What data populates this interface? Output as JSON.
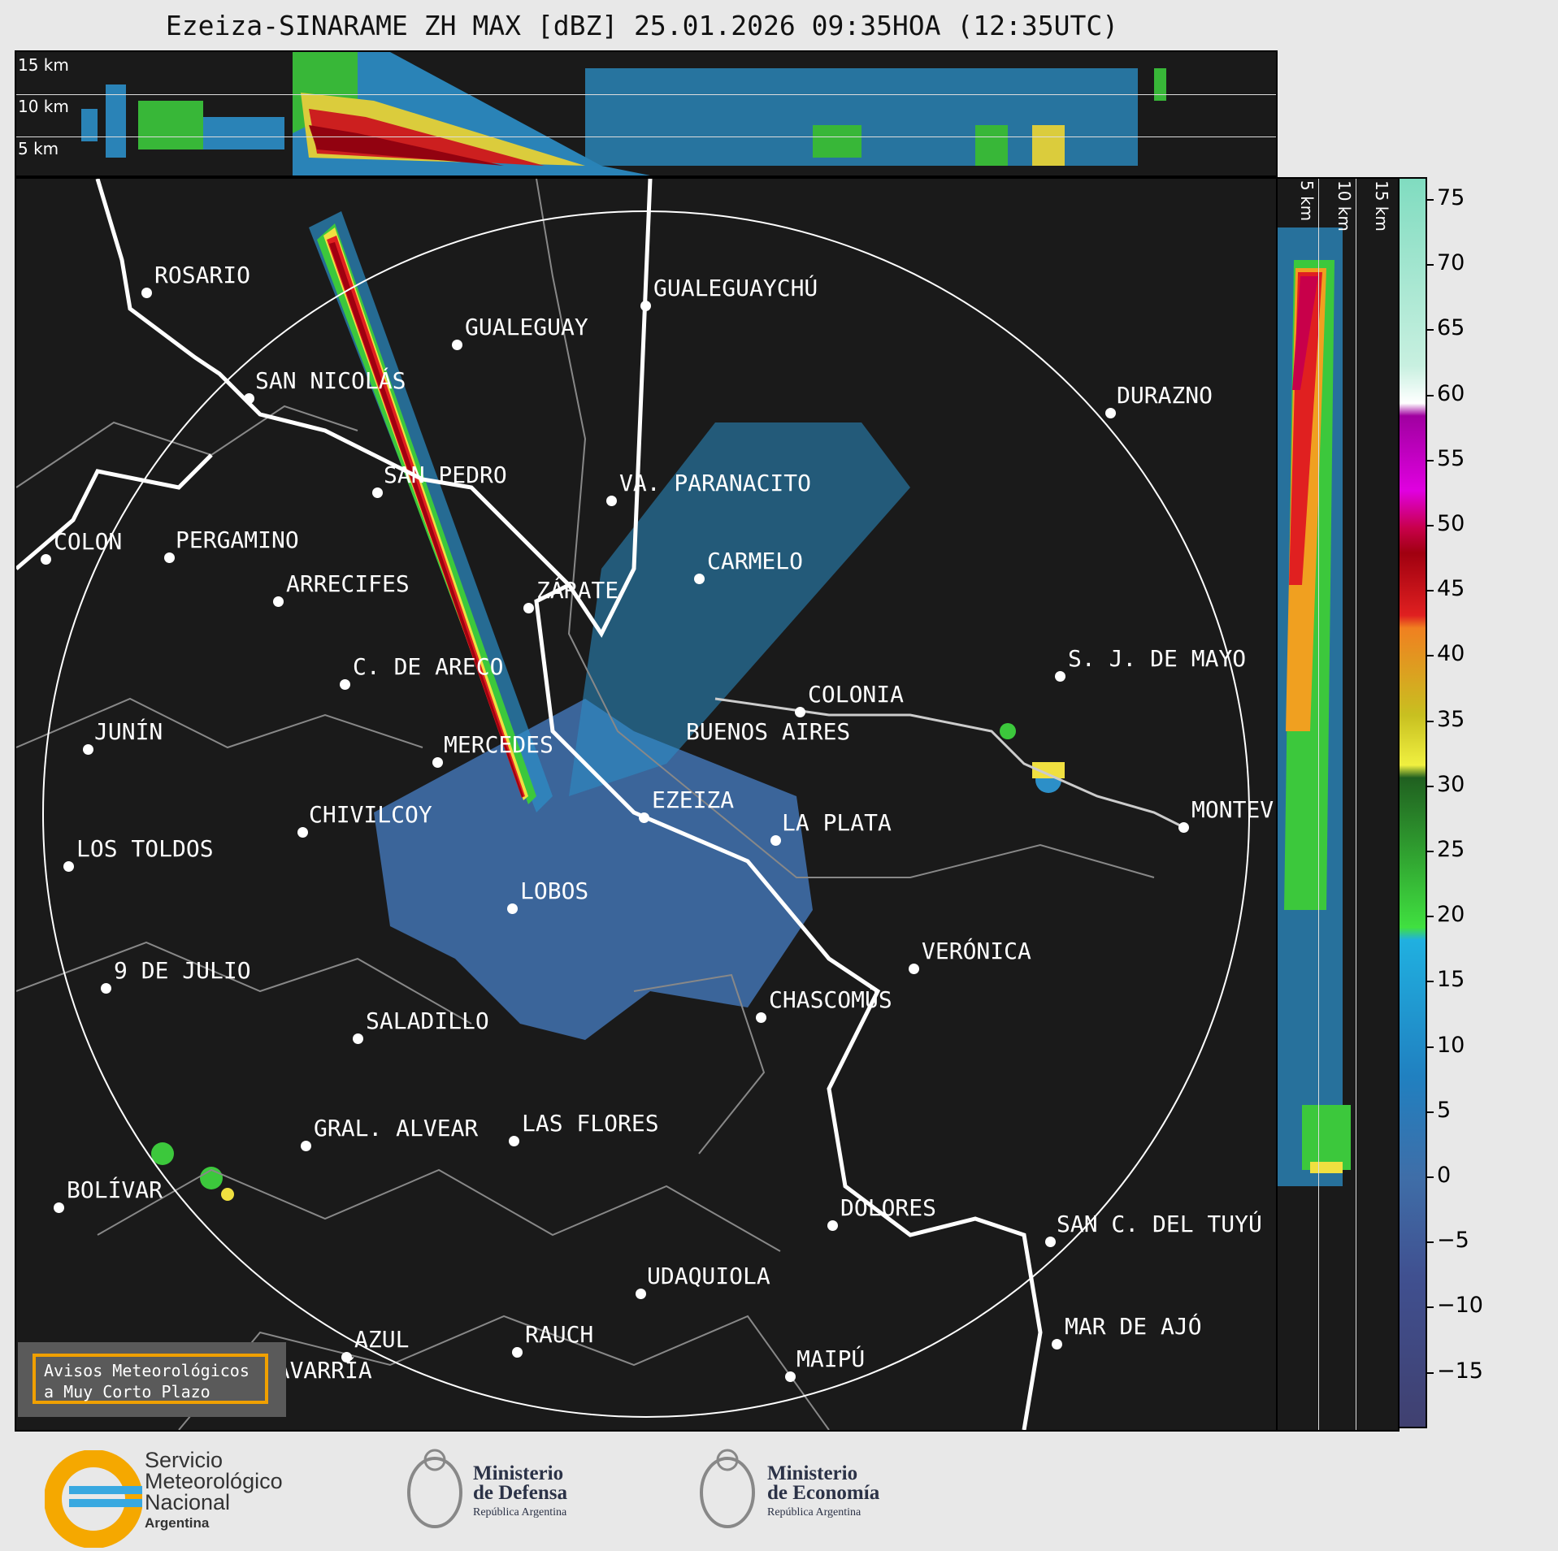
{
  "title": "Ezeiza-SINARAME ZH MAX [dBZ] 25.01.2026 09:35HOA (12:35UTC)",
  "top_panel": {
    "labels": [
      "15 km",
      "10 km",
      "5 km"
    ]
  },
  "side_panel": {
    "labels": [
      "5 km",
      "10 km",
      "15 km"
    ]
  },
  "colorbar": {
    "ticks": [
      "75",
      "70",
      "65",
      "60",
      "55",
      "50",
      "45",
      "40",
      "35",
      "30",
      "25",
      "20",
      "15",
      "10",
      "5",
      "0",
      "−5",
      "−10",
      "−15"
    ]
  },
  "cities": [
    {
      "name": "ROSARIO"
    },
    {
      "name": "GUALEGUAYCHÚ"
    },
    {
      "name": "GUALEGUAY"
    },
    {
      "name": "SAN NICOLÁS"
    },
    {
      "name": "DURAZNO"
    },
    {
      "name": "SAN PEDRO"
    },
    {
      "name": "VA. PARANACITO"
    },
    {
      "name": "COLON"
    },
    {
      "name": "PERGAMINO"
    },
    {
      "name": "CARMELO"
    },
    {
      "name": "ARRECIFES"
    },
    {
      "name": "ZÁRATE"
    },
    {
      "name": "S. J. DE MAYO"
    },
    {
      "name": "C. DE ARECO"
    },
    {
      "name": "COLONIA"
    },
    {
      "name": "JUNÍN"
    },
    {
      "name": "BUENOS AIRES"
    },
    {
      "name": "MERCEDES"
    },
    {
      "name": "EZEIZA"
    },
    {
      "name": "MONTEV"
    },
    {
      "name": "CHIVILCOY"
    },
    {
      "name": "LA PLATA"
    },
    {
      "name": "LOS TOLDOS"
    },
    {
      "name": "LOBOS"
    },
    {
      "name": "VERÓNICA"
    },
    {
      "name": "9 DE JULIO"
    },
    {
      "name": "CHASCOMÚS"
    },
    {
      "name": "SALADILLO"
    },
    {
      "name": "GRAL. ALVEAR"
    },
    {
      "name": "LAS FLORES"
    },
    {
      "name": "BOLÍVAR"
    },
    {
      "name": "DOLORES"
    },
    {
      "name": "SAN C. DEL TUYÚ"
    },
    {
      "name": "UDAQUIOLA"
    },
    {
      "name": "AZUL"
    },
    {
      "name": "RAUCH"
    },
    {
      "name": "MAR DE AJÓ"
    },
    {
      "name": "MAIPÚ"
    },
    {
      "name": "OLAVARRÍA"
    }
  ],
  "badge": {
    "line1": "Avisos Meteorológicos",
    "line2": "a Muy Corto Plazo"
  },
  "logos": {
    "smn": {
      "line1": "Servicio",
      "line2": "Meteorológico",
      "line3": "Nacional",
      "line4": "Argentina"
    },
    "defensa": {
      "line1": "Ministerio",
      "line2": "de Defensa",
      "line3": "República Argentina"
    },
    "economia": {
      "line1": "Ministerio",
      "line2": "de Economía",
      "line3": "República Argentina"
    }
  }
}
